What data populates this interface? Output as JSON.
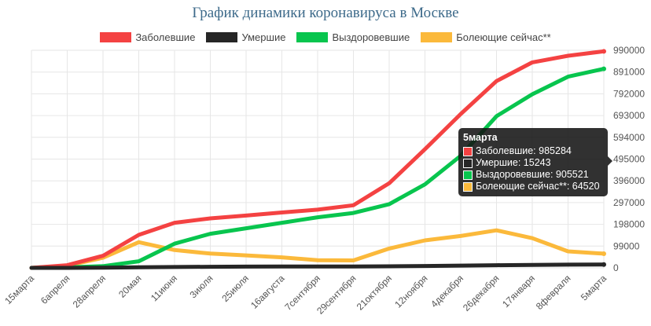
{
  "chart_data": {
    "type": "line",
    "title": "График динамики коронавируса в Москве",
    "x_labels": [
      "15марта",
      "6апреля",
      "28апреля",
      "20мая",
      "11июня",
      "3июля",
      "25июля",
      "16августа",
      "7сентября",
      "29сентября",
      "21октября",
      "12ноября",
      "4декабря",
      "26декабря",
      "17января",
      "8февраля",
      "5марта"
    ],
    "y_ticks": [
      0,
      99000,
      198000,
      297000,
      396000,
      495000,
      594000,
      693000,
      792000,
      891000,
      990000
    ],
    "ylim": [
      0,
      990000
    ],
    "grid": true,
    "legend_position": "top",
    "series": [
      {
        "name": "Заболевшие",
        "color": "#f44242",
        "values": [
          0,
          12000,
          55000,
          150000,
          205000,
          225000,
          238000,
          252000,
          265000,
          285000,
          385000,
          540000,
          700000,
          850000,
          935000,
          965000,
          985284
        ]
      },
      {
        "name": "Умершие",
        "color": "#262626",
        "values": [
          0,
          100,
          1000,
          2500,
          3800,
          5000,
          5600,
          6000,
          6200,
          6500,
          7300,
          8700,
          10500,
          12000,
          13500,
          14500,
          15243
        ]
      },
      {
        "name": "Выздоровевшие",
        "color": "#08c54e",
        "values": [
          0,
          2000,
          8000,
          30000,
          110000,
          155000,
          180000,
          205000,
          230000,
          250000,
          290000,
          380000,
          510000,
          690000,
          790000,
          870000,
          905521
        ]
      },
      {
        "name": "Болеющие сейчас**",
        "color": "#fbb93b",
        "values": [
          0,
          10000,
          46000,
          117000,
          81000,
          65000,
          57000,
          48000,
          35000,
          34000,
          88000,
          125000,
          145000,
          171000,
          135000,
          75000,
          64520
        ]
      }
    ]
  },
  "tooltip": {
    "title": "5марта",
    "rows": [
      "Заболевшие: 985284",
      "Умершие: 15243",
      "Выздоровевшие: 905521",
      "Болеющие сейчас**: 64520"
    ]
  }
}
